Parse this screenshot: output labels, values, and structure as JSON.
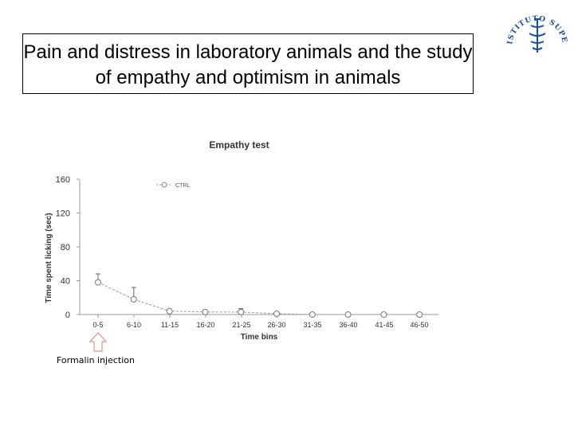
{
  "slide": {
    "title": "Pain and distress in laboratory animals and the study of empathy and optimism in animals",
    "logo_text": "ISTITUTO SUPERIORE DI SANITA"
  },
  "chart_data": {
    "type": "line",
    "title": "Empathy test",
    "xlabel": "Time bins",
    "ylabel": "Time spent licking (sec)",
    "categories": [
      "0-5",
      "6-10",
      "11-15",
      "16-20",
      "21-25",
      "26-30",
      "31-35",
      "36-40",
      "41-45",
      "46-50"
    ],
    "yticks": [
      0,
      40,
      80,
      120,
      160
    ],
    "ylim": [
      0,
      160
    ],
    "series": [
      {
        "name": "CTRL",
        "values": [
          38,
          18,
          4,
          3,
          3,
          1,
          0,
          0,
          0,
          0
        ],
        "errors": [
          10,
          14,
          0,
          0,
          4,
          0,
          0,
          0,
          0,
          0
        ]
      }
    ],
    "legend_position": "top-left",
    "annotation": "Formalin injection"
  }
}
